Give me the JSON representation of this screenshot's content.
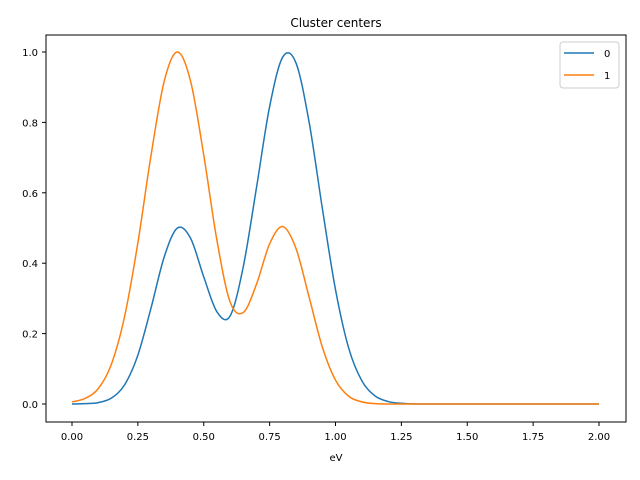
{
  "chart_data": {
    "type": "line",
    "title": "Cluster centers",
    "xlabel": "eV",
    "ylabel": "",
    "xlim": [
      -0.1,
      2.1
    ],
    "ylim": [
      -0.05,
      1.05
    ],
    "grid": false,
    "legend_position": "upper right",
    "x_ticks": [
      "0.00",
      "0.25",
      "0.50",
      "0.75",
      "1.00",
      "1.25",
      "1.50",
      "1.75",
      "2.00"
    ],
    "y_ticks": [
      "0.0",
      "0.2",
      "0.4",
      "0.6",
      "0.8",
      "1.0"
    ],
    "x": [
      0.0,
      0.05,
      0.1,
      0.15,
      0.2,
      0.25,
      0.3,
      0.35,
      0.4,
      0.45,
      0.5,
      0.55,
      0.6,
      0.65,
      0.7,
      0.75,
      0.8,
      0.85,
      0.9,
      0.95,
      1.0,
      1.05,
      1.1,
      1.15,
      1.2,
      1.25,
      1.3,
      1.4,
      1.5,
      1.6,
      1.7,
      1.8,
      1.9,
      2.0
    ],
    "series": [
      {
        "name": "0",
        "color": "#1f77b4",
        "values": [
          0.0,
          0.001,
          0.004,
          0.017,
          0.055,
          0.139,
          0.273,
          0.418,
          0.5,
          0.471,
          0.361,
          0.262,
          0.25,
          0.39,
          0.614,
          0.845,
          0.986,
          0.969,
          0.8,
          0.556,
          0.325,
          0.159,
          0.066,
          0.023,
          0.007,
          0.002,
          0.0,
          0.0,
          0.0,
          0.0,
          0.0,
          0.0,
          0.0,
          0.0
        ]
      },
      {
        "name": "1",
        "color": "#ff7f0e",
        "values": [
          0.006,
          0.016,
          0.044,
          0.114,
          0.25,
          0.458,
          0.707,
          0.917,
          1.0,
          0.917,
          0.707,
          0.465,
          0.29,
          0.26,
          0.34,
          0.455,
          0.504,
          0.442,
          0.303,
          0.162,
          0.068,
          0.022,
          0.006,
          0.001,
          0.0,
          0.0,
          0.0,
          0.0,
          0.0,
          0.0,
          0.0,
          0.0,
          0.0,
          0.0
        ]
      }
    ]
  }
}
